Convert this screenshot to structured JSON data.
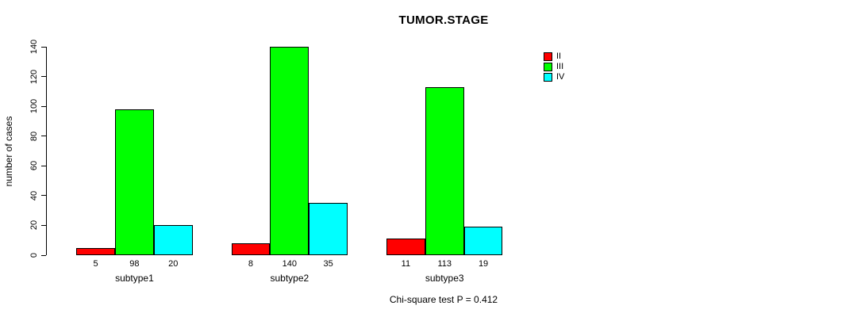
{
  "chart_data": {
    "type": "bar",
    "title": "TUMOR.STAGE",
    "ylabel": "number of cases",
    "xlabel": "",
    "categories": [
      "subtype1",
      "subtype2",
      "subtype3"
    ],
    "series": [
      {
        "name": "II",
        "color": "#FF0000",
        "values": [
          5,
          8,
          11
        ]
      },
      {
        "name": "III",
        "color": "#00FF00",
        "values": [
          98,
          140,
          113
        ]
      },
      {
        "name": "IV",
        "color": "#00FFFF",
        "values": [
          20,
          35,
          19
        ]
      }
    ],
    "yticks": [
      0,
      20,
      40,
      60,
      80,
      100,
      120,
      140
    ],
    "ylim": [
      0,
      140
    ],
    "grid": false,
    "legend_position": "right",
    "bar_value_labels_shown": true,
    "footer": "Chi-square test P = 0.412"
  }
}
